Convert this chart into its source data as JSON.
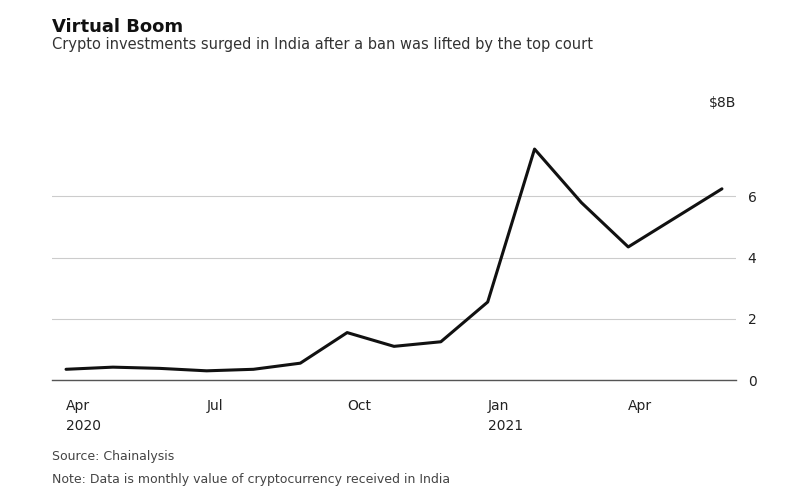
{
  "title": "Virtual Boom",
  "subtitle": "Crypto investments surged in India after a ban was lifted by the top court",
  "source": "Source: Chainalysis",
  "note": "Note: Data is monthly value of cryptocurrency received in India",
  "ylabel_right": "$8B",
  "yticks": [
    0,
    2,
    4,
    6
  ],
  "ytick_labels": [
    "0",
    "2",
    "4",
    "6"
  ],
  "ylim": [
    0,
    8.5
  ],
  "background_color": "#ffffff",
  "line_color": "#111111",
  "line_width": 2.2,
  "grid_color": "#cccccc",
  "y_values": [
    0.35,
    0.42,
    0.38,
    0.3,
    0.35,
    0.55,
    1.55,
    1.1,
    1.25,
    2.55,
    7.55,
    5.8,
    4.35,
    5.3,
    6.25
  ],
  "xtick_positions": [
    0,
    3,
    6,
    9,
    12
  ],
  "xtick_labels_month": [
    "Apr",
    "Jul",
    "Oct",
    "Jan",
    "Apr"
  ],
  "xtick_labels_year": [
    "2020",
    "",
    "",
    "2021",
    ""
  ],
  "title_fontsize": 13,
  "subtitle_fontsize": 10.5,
  "tick_fontsize": 10,
  "source_fontsize": 9,
  "ylabel_fontsize": 10
}
